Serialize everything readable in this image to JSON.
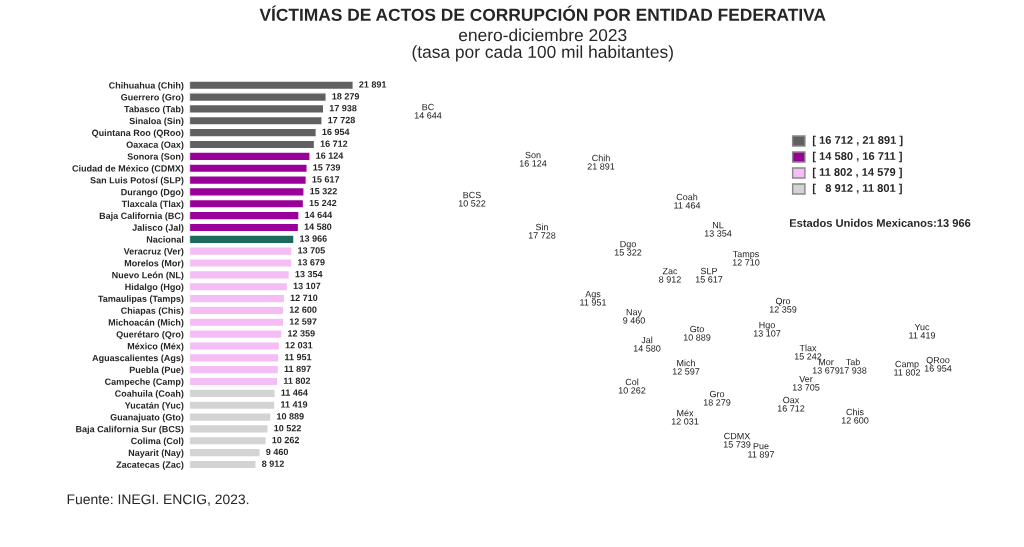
{
  "chart_data": [
    {
      "type": "bar",
      "orientation": "horizontal",
      "title": "VÍCTIMAS DE ACTOS DE CORRUPCIÓN POR ENTIDAD FEDERATIVA",
      "categories": [
        "Chihuahua (Chih)",
        "Guerrero (Gro)",
        "Tabasco (Tab)",
        "Sinaloa (Sin)",
        "Quintana Roo (QRoo)",
        "Oaxaca (Oax)",
        "Sonora (Son)",
        "Ciudad de México (CDMX)",
        "San Luis Potosí (SLP)",
        "Durango (Dgo)",
        "Tlaxcala (Tlax)",
        "Baja California (BC)",
        "Jalisco (Jal)",
        "Nacional",
        "Veracruz (Ver)",
        "Morelos (Mor)",
        "Nuevo León (NL)",
        "Hidalgo (Hgo)",
        "Tamaulipas (Tamps)",
        "Chiapas (Chis)",
        "Michoacán (Mich)",
        "Querétaro (Qro)",
        "México (Méx)",
        "Aguascalientes (Ags)",
        "Puebla (Pue)",
        "Campeche (Camp)",
        "Coahuila (Coah)",
        "Yucatán (Yuc)",
        "Guanajuato (Gto)",
        "Baja California Sur (BCS)",
        "Colima (Col)",
        "Nayarit (Nay)",
        "Zacatecas (Zac)"
      ],
      "values": [
        21891,
        18279,
        17938,
        17728,
        16954,
        16712,
        16124,
        15739,
        15617,
        15322,
        15242,
        14644,
        14580,
        13966,
        13705,
        13679,
        13354,
        13107,
        12710,
        12600,
        12597,
        12359,
        12031,
        11951,
        11897,
        11802,
        11464,
        11419,
        10889,
        10522,
        10262,
        9460,
        8912
      ],
      "value_labels": [
        "21 891",
        "18 279",
        "17 938",
        "17 728",
        "16 954",
        "16 712",
        "16 124",
        "15 739",
        "15 617",
        "15 322",
        "15 242",
        "14 644",
        "14 580",
        "13 966",
        "13 705",
        "13 679",
        "13 354",
        "13 107",
        "12 710",
        "12 600",
        "12 597",
        "12 359",
        "12 031",
        "11 951",
        "11 897",
        "11 802",
        "11 464",
        "11 419",
        "10 889",
        "10 522",
        "10 262",
        "9 460",
        "8 912"
      ],
      "colors": [
        "#606060",
        "#606060",
        "#606060",
        "#606060",
        "#606060",
        "#606060",
        "#990099",
        "#990099",
        "#990099",
        "#990099",
        "#990099",
        "#990099",
        "#990099",
        "#1b6a5c",
        "#f5bdf5",
        "#f5bdf5",
        "#f5bdf5",
        "#f5bdf5",
        "#f5bdf5",
        "#f5bdf5",
        "#f5bdf5",
        "#f5bdf5",
        "#f5bdf5",
        "#f5bdf5",
        "#f5bdf5",
        "#f5bdf5",
        "#d3d3d3",
        "#d3d3d3",
        "#d3d3d3",
        "#d3d3d3",
        "#d3d3d3",
        "#d3d3d3",
        "#d3d3d3"
      ],
      "annotations": [
        "Fuente: INEGI. ENCIG, 2023."
      ]
    },
    {
      "type": "other",
      "subtitle": "enero-diciembre 2023\n(tasa por cada 100 mil habitantes)",
      "categories": [
        "[ 16 712 , 21 891 ]",
        "[ 14 580 , 16 711 ]",
        "[ 11 802 , 14 579 ]",
        "[   8 912 , 11 801 ]"
      ],
      "colors": [
        "#606060",
        "#990099",
        "#f5bdf5",
        "#d3d3d3"
      ],
      "annotations": [
        "Estados Unidos Mexicanos:13 966",
        "BC\n14 644",
        "Son\n16 124",
        "Chih\n21 891",
        "Coah\n11 464",
        "BCS\n10 522",
        "NL\n13 354",
        "Sin\n17 728",
        "Dgo\n15 322",
        "Tamps\n12 710",
        "Zac\n8 912",
        "SLP\n15 617",
        "Ags\n11 951",
        "Qro\n12 359",
        "Nay\n9 460",
        "Gto\n10 889",
        "Hgo\n13 107",
        "Jal\n14 580",
        "Tlax\n15 242",
        "Mich\n12 597",
        "Mor\n13 679",
        "Tab\n17 938",
        "Yuc\n11 419",
        "Camp\n11 802",
        "QRoo\n16 954",
        "Ver\n13 705",
        "Col\n10 262",
        "Gro\n18 279",
        "Méx\n12 031",
        "Oax\n16 712",
        "Chis\n12 600",
        "CDMX\n15 739",
        "Pue\n11 897"
      ]
    }
  ]
}
